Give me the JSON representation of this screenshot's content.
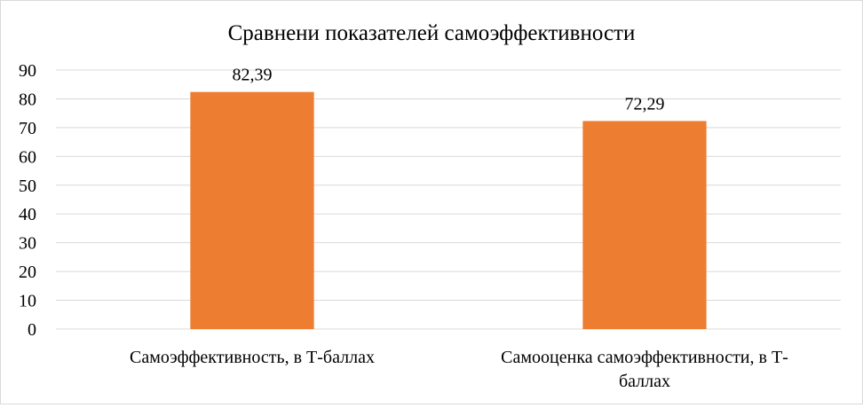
{
  "chart_data": {
    "type": "bar",
    "title": "Сравнени показателей самоэффективности",
    "xlabel": "",
    "ylabel": "",
    "categories": [
      [
        "Самоэффективность, в Т-баллах"
      ],
      [
        "Самооценка самоэффективности, в Т-",
        "баллах"
      ]
    ],
    "values": [
      82.39,
      72.29
    ],
    "data_labels": [
      "82,39",
      "72,29"
    ],
    "ylim": [
      0,
      90
    ],
    "yticks": [
      0,
      10,
      20,
      30,
      40,
      50,
      60,
      70,
      80,
      90
    ],
    "grid": true,
    "legend": "none",
    "colors": {
      "bar": "#ED7D31",
      "grid": "#d9d9d9",
      "axis": "#d9d9d9"
    }
  }
}
